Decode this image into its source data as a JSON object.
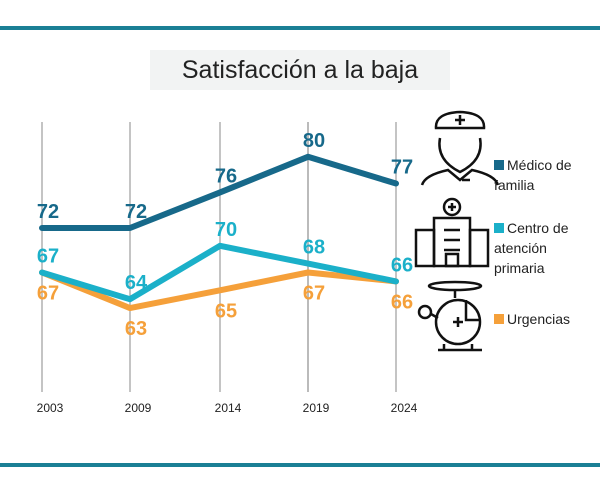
{
  "chart_data": {
    "type": "line",
    "title": "Satisfacción a la baja",
    "categories": [
      "2003",
      "2009",
      "2014",
      "2019",
      "2024"
    ],
    "series": [
      {
        "name": "Médico de familia",
        "color": "#17698a",
        "values": [
          72,
          72,
          76,
          80,
          77
        ],
        "icon": "doctor-icon"
      },
      {
        "name": "Centro de atención primaria",
        "color": "#1bb0c9",
        "values": [
          67,
          64,
          70,
          68,
          66
        ],
        "icon": "hospital-icon"
      },
      {
        "name": "Urgencias",
        "color": "#f5a03a",
        "values": [
          67,
          63,
          65,
          67,
          66
        ],
        "icon": "helicopter-icon"
      }
    ],
    "grid": "vertical",
    "legend": "right"
  }
}
